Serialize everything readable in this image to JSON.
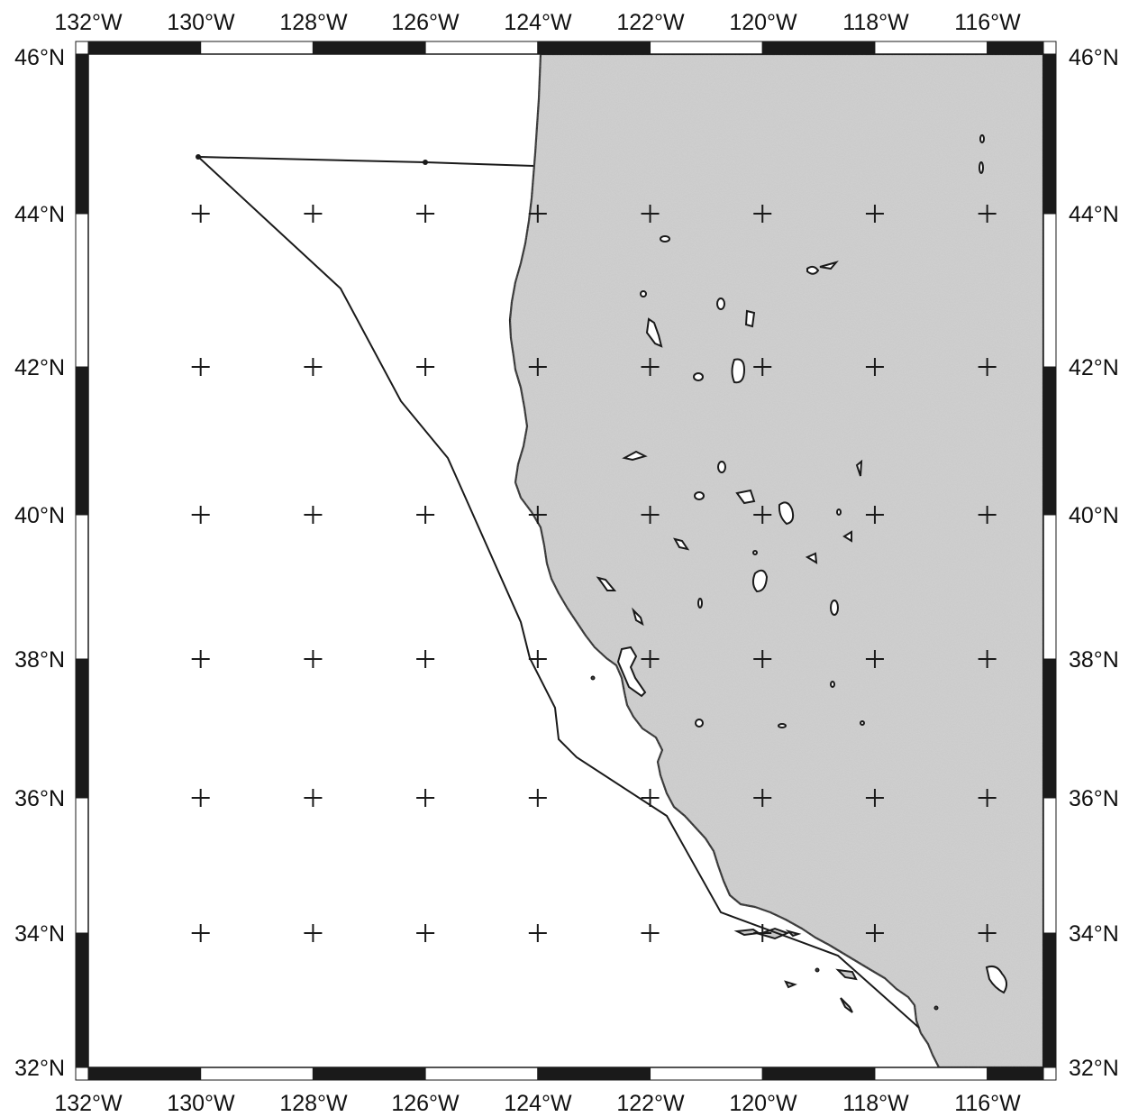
{
  "map": {
    "lon_range": [
      -132,
      -115
    ],
    "lat_range": [
      32,
      46
    ],
    "projection": "Mercator",
    "frame_style": "alternating black/white checkered border",
    "land_color": "#c9c9c9",
    "ocean_color": "#ffffff",
    "grid": "plus-sign crosses at every 2 degrees",
    "top_labels": [
      "132°W",
      "130°W",
      "128°W",
      "126°W",
      "124°W",
      "122°W",
      "120°W",
      "118°W",
      "116°W"
    ],
    "bottom_labels": [
      "132°W",
      "130°W",
      "128°W",
      "126°W",
      "124°W",
      "122°W",
      "120°W",
      "118°W",
      "116°W"
    ],
    "left_labels": [
      "46°N",
      "44°N",
      "42°N",
      "40°N",
      "38°N",
      "36°N",
      "34°N",
      "32°N"
    ],
    "right_labels": [
      "46°N",
      "44°N",
      "42°N",
      "40°N",
      "38°N",
      "36°N",
      "34°N",
      "32°N"
    ],
    "boundary_line": "offshore region outline (polygon) from 44.7°N 130°W down along the coast to Southern California",
    "features": [
      "coastline",
      "lakes",
      "Channel Islands",
      "San Francisco Bay"
    ]
  }
}
